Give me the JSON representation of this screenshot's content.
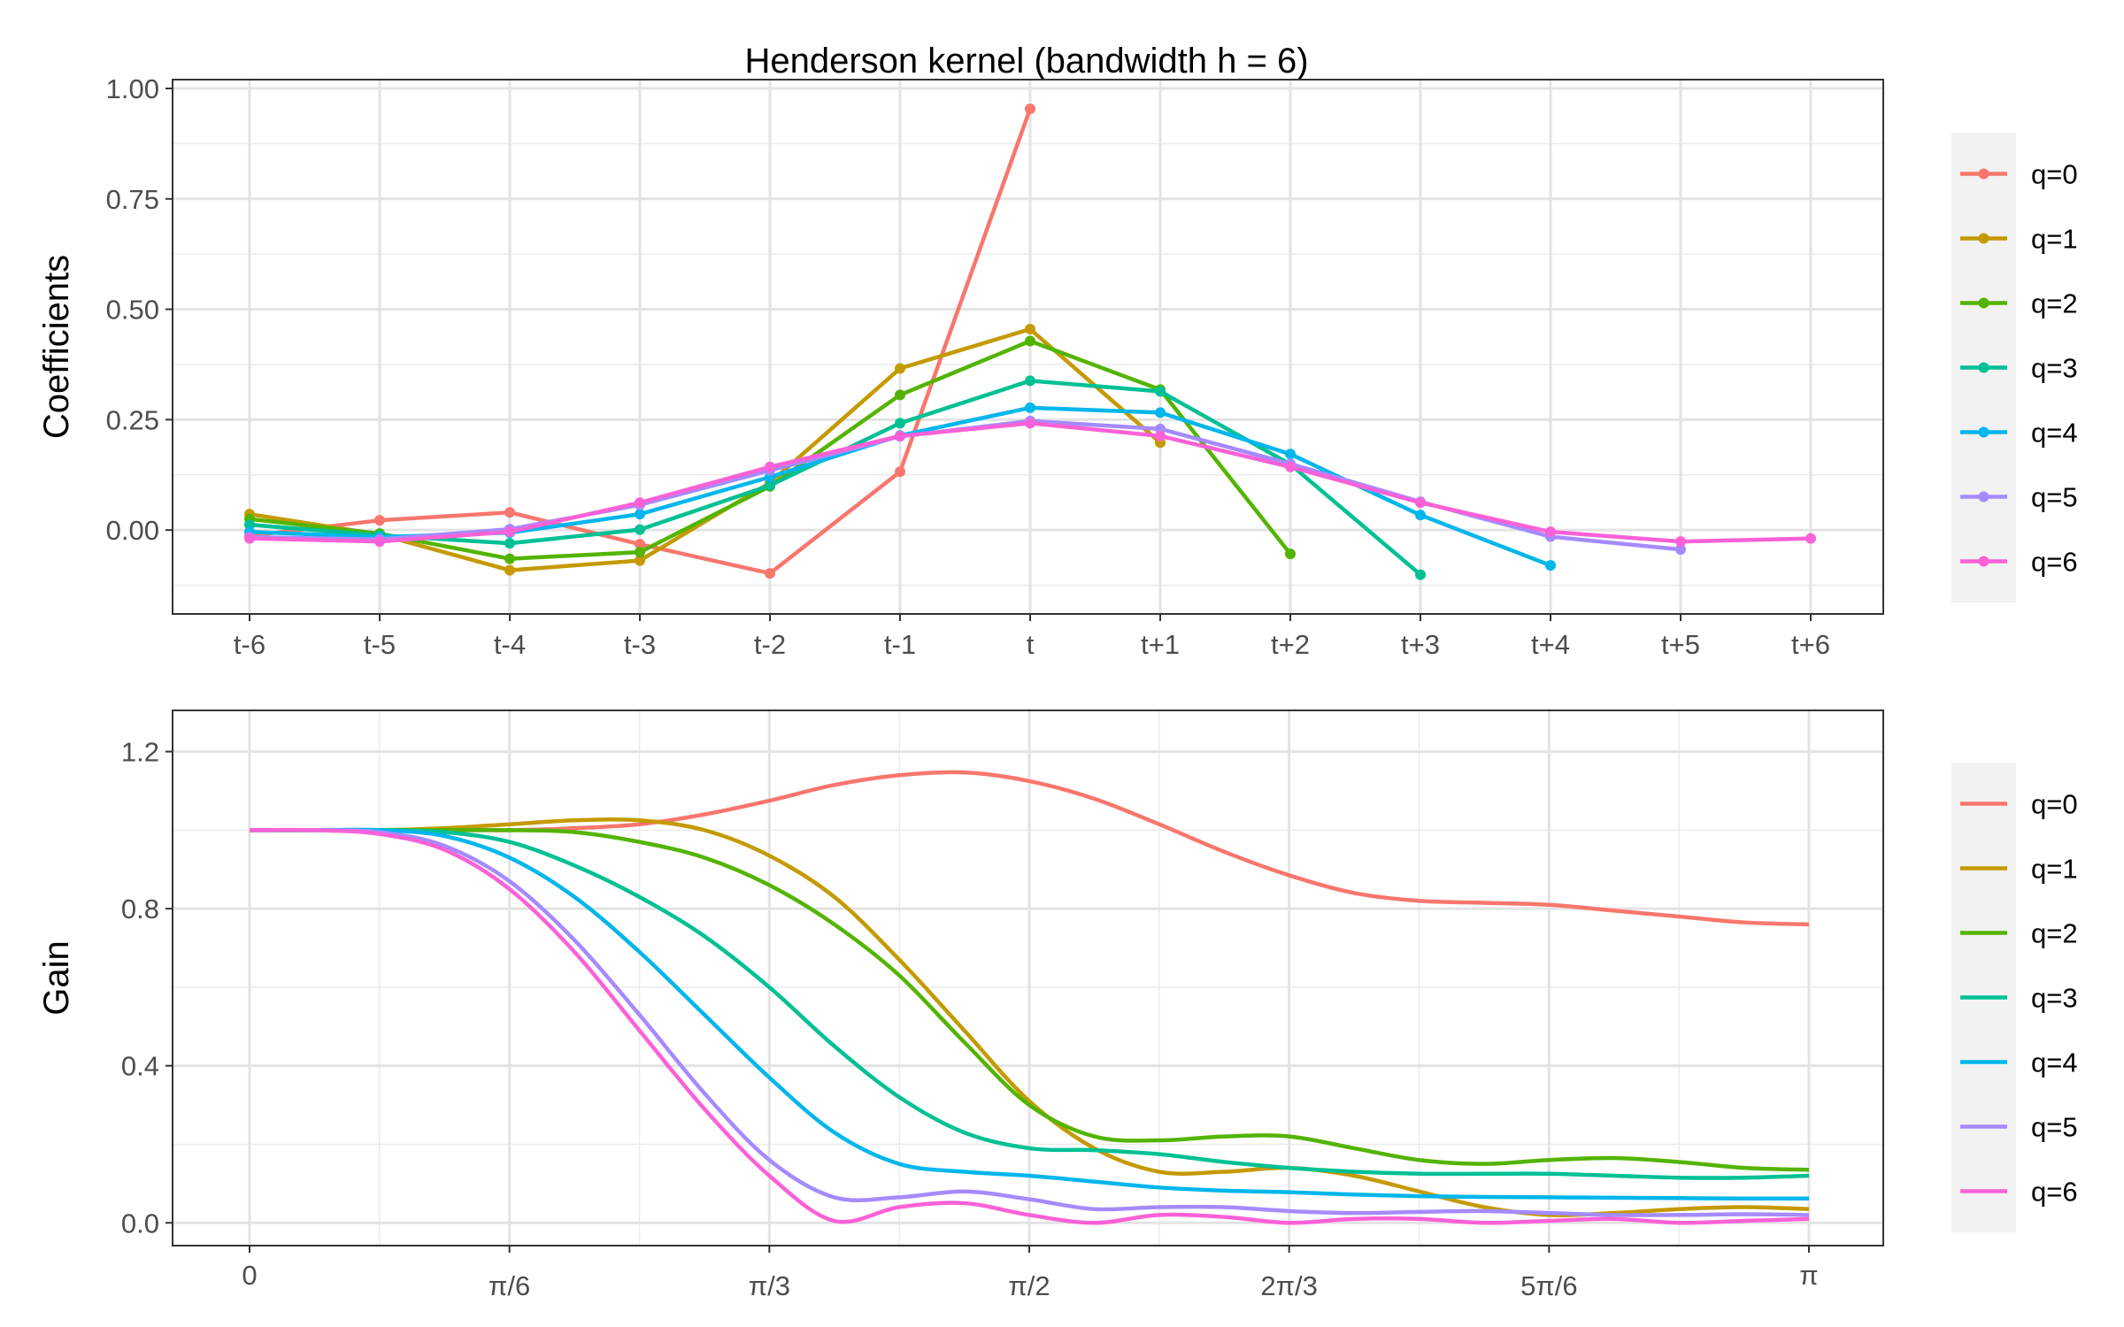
{
  "chart_data": [
    {
      "type": "line",
      "title": "Henderson kernel (bandwidth h = 6)",
      "xlabel": "",
      "ylabel": "Coefficients",
      "categories": [
        "t-6",
        "t-5",
        "t-4",
        "t-3",
        "t-2",
        "t-1",
        "t",
        "t+1",
        "t+2",
        "t+3",
        "t+4",
        "t+5",
        "t+6"
      ],
      "ylim": [
        -0.19,
        1.02
      ],
      "yticks": [
        0.0,
        0.25,
        0.5,
        0.75,
        1.0
      ],
      "ytick_labels": [
        "0.00",
        "0.25",
        "0.50",
        "0.75",
        "1.00"
      ],
      "grid": true,
      "legend": "right",
      "markers": true,
      "series": [
        {
          "name": "q=0",
          "color": "#F8766D",
          "values": [
            -0.013,
            0.022,
            0.04,
            -0.032,
            -0.098,
            0.132,
            0.954,
            null,
            null,
            null,
            null,
            null,
            null
          ]
        },
        {
          "name": "q=1",
          "color": "#C49A00",
          "values": [
            0.036,
            -0.01,
            -0.091,
            -0.069,
            0.107,
            0.366,
            0.455,
            0.198,
            null,
            null,
            null,
            null,
            null
          ]
        },
        {
          "name": "q=2",
          "color": "#53B400",
          "values": [
            0.025,
            -0.008,
            -0.065,
            -0.05,
            0.099,
            0.306,
            0.428,
            0.318,
            -0.054,
            null,
            null,
            null,
            null
          ]
        },
        {
          "name": "q=3",
          "color": "#00C094",
          "values": [
            0.012,
            -0.012,
            -0.03,
            0.001,
            0.101,
            0.242,
            0.338,
            0.314,
            0.149,
            -0.101,
            null,
            null,
            null
          ]
        },
        {
          "name": "q=4",
          "color": "#00B6EB",
          "values": [
            -0.004,
            -0.016,
            -0.006,
            0.036,
            0.12,
            0.214,
            0.277,
            0.266,
            0.172,
            0.034,
            -0.08,
            null,
            null
          ]
        },
        {
          "name": "q=5",
          "color": "#A58AFF",
          "values": [
            -0.016,
            -0.021,
            0.002,
            0.057,
            0.135,
            0.212,
            0.247,
            0.229,
            0.15,
            0.064,
            -0.015,
            -0.044,
            null
          ]
        },
        {
          "name": "q=6",
          "color": "#FB61D7",
          "values": [
            -0.019,
            -0.026,
            -0.004,
            0.062,
            0.143,
            0.213,
            0.242,
            0.213,
            0.143,
            0.062,
            -0.004,
            -0.026,
            -0.019
          ]
        }
      ]
    },
    {
      "type": "line",
      "title": "",
      "xlabel": "",
      "ylabel": "Gain",
      "xlim": [
        0,
        1
      ],
      "x_unit": "fraction of π",
      "xticks": [
        0,
        0.16667,
        0.33333,
        0.5,
        0.66667,
        0.83333,
        1
      ],
      "xtick_labels": [
        "0",
        "π/6",
        "π/3",
        "π/2",
        "2π/3",
        "5π/6",
        "π"
      ],
      "ylim": [
        -0.058,
        1.305
      ],
      "yticks": [
        0.0,
        0.4,
        0.8,
        1.2
      ],
      "ytick_labels": [
        "0.0",
        "0.4",
        "0.8",
        "1.2"
      ],
      "grid": true,
      "legend": "right",
      "x": [
        0,
        0.04167,
        0.08333,
        0.125,
        0.16667,
        0.20833,
        0.25,
        0.29167,
        0.33333,
        0.375,
        0.41667,
        0.45833,
        0.5,
        0.54167,
        0.58333,
        0.625,
        0.66667,
        0.70833,
        0.75,
        0.79167,
        0.83333,
        0.875,
        0.91667,
        0.95833,
        1
      ],
      "series": [
        {
          "name": "q=0",
          "color": "#F8766D",
          "values": [
            1.0,
            1.0,
            1.0,
            1.0,
            1.0,
            1.005,
            1.015,
            1.04,
            1.075,
            1.115,
            1.14,
            1.147,
            1.125,
            1.08,
            1.015,
            0.945,
            0.885,
            0.84,
            0.82,
            0.815,
            0.81,
            0.795,
            0.78,
            0.765,
            0.76
          ]
        },
        {
          "name": "q=1",
          "color": "#C49A00",
          "values": [
            1.0,
            1.0,
            1.0,
            1.005,
            1.015,
            1.025,
            1.025,
            1.0,
            0.935,
            0.83,
            0.67,
            0.49,
            0.31,
            0.19,
            0.13,
            0.13,
            0.14,
            0.12,
            0.08,
            0.04,
            0.02,
            0.025,
            0.035,
            0.04,
            0.035
          ]
        },
        {
          "name": "q=2",
          "color": "#53B400",
          "values": [
            1.0,
            1.0,
            1.0,
            1.0,
            1.0,
            0.995,
            0.97,
            0.93,
            0.86,
            0.76,
            0.63,
            0.46,
            0.3,
            0.22,
            0.21,
            0.22,
            0.22,
            0.19,
            0.16,
            0.15,
            0.16,
            0.165,
            0.155,
            0.14,
            0.135
          ]
        },
        {
          "name": "q=3",
          "color": "#00C094",
          "values": [
            1.0,
            1.0,
            1.0,
            0.995,
            0.97,
            0.91,
            0.83,
            0.73,
            0.6,
            0.45,
            0.32,
            0.23,
            0.19,
            0.185,
            0.175,
            0.155,
            0.14,
            0.13,
            0.125,
            0.125,
            0.125,
            0.12,
            0.115,
            0.115,
            0.12
          ]
        },
        {
          "name": "q=4",
          "color": "#00B6EB",
          "values": [
            1.0,
            1.0,
            1.0,
            0.985,
            0.93,
            0.83,
            0.69,
            0.53,
            0.37,
            0.23,
            0.15,
            0.13,
            0.12,
            0.105,
            0.09,
            0.082,
            0.078,
            0.072,
            0.068,
            0.066,
            0.065,
            0.064,
            0.063,
            0.062,
            0.062
          ]
        },
        {
          "name": "q=5",
          "color": "#A58AFF",
          "values": [
            1.0,
            1.0,
            0.995,
            0.96,
            0.87,
            0.72,
            0.53,
            0.33,
            0.16,
            0.065,
            0.065,
            0.08,
            0.06,
            0.035,
            0.04,
            0.04,
            0.03,
            0.025,
            0.028,
            0.03,
            0.025,
            0.02,
            0.02,
            0.022,
            0.02
          ]
        },
        {
          "name": "q=6",
          "color": "#FB61D7",
          "values": [
            1.0,
            1.0,
            0.99,
            0.95,
            0.85,
            0.69,
            0.49,
            0.29,
            0.12,
            0.005,
            0.04,
            0.05,
            0.02,
            0.0,
            0.02,
            0.015,
            0.0,
            0.01,
            0.01,
            0.0,
            0.005,
            0.01,
            0.0,
            0.005,
            0.01
          ]
        }
      ]
    }
  ]
}
